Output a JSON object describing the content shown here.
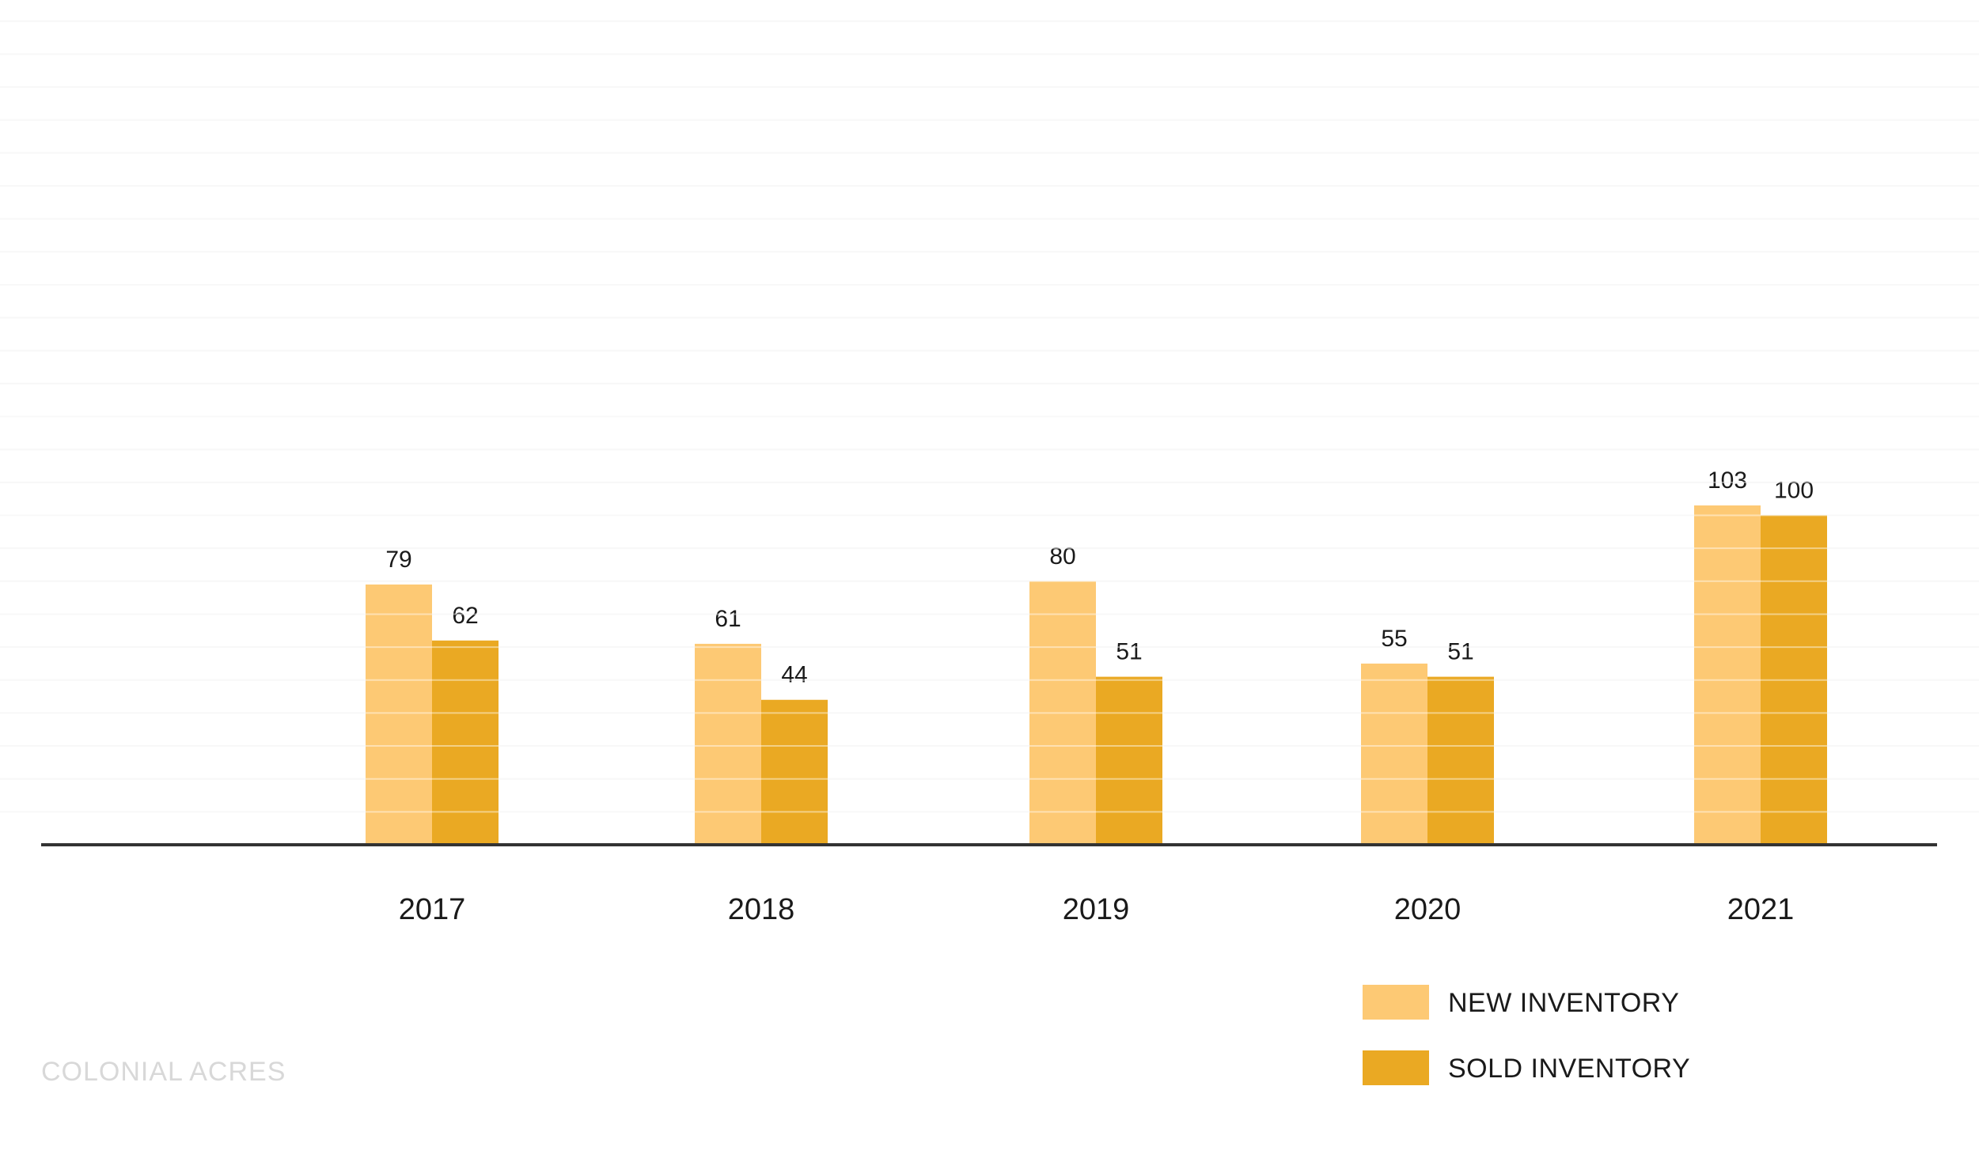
{
  "chart_data": {
    "type": "bar",
    "title": "",
    "xlabel": "",
    "ylabel": "",
    "categories": [
      "2017",
      "2018",
      "2019",
      "2020",
      "2021"
    ],
    "series": [
      {
        "name": "NEW INVENTORY",
        "values": [
          79,
          61,
          80,
          55,
          103
        ],
        "color": "#fdc974"
      },
      {
        "name": "SOLD INVENTORY",
        "values": [
          62,
          44,
          51,
          51,
          100
        ],
        "color": "#eaa923"
      }
    ],
    "ylim": [
      0,
      250
    ],
    "grid": true,
    "legend_position": "bottom-right",
    "colors": {
      "grid": "#f3f3f3",
      "axis": "#333333",
      "label": "#1a1a1a",
      "brand": "#d8d8d8"
    }
  },
  "legend": {
    "items": [
      {
        "label": "NEW INVENTORY",
        "color": "#fdc974"
      },
      {
        "label": "SOLD INVENTORY",
        "color": "#eaa923"
      }
    ]
  },
  "footer": {
    "brand": "COLONIAL ACRES"
  }
}
